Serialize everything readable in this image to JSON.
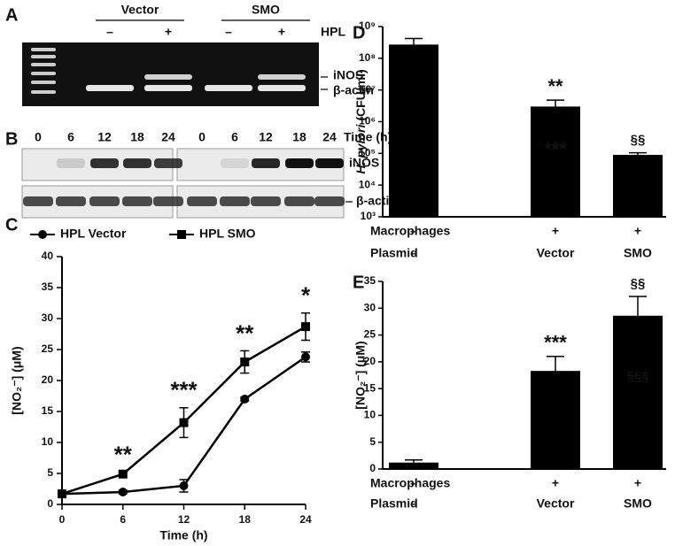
{
  "panels": {
    "A": {
      "label": "A",
      "groups": [
        "Vector",
        "SMO"
      ],
      "treatment": "HPL",
      "signs": [
        "–",
        "+",
        "–",
        "+"
      ],
      "bands": [
        "iNOS",
        "β-actin"
      ]
    },
    "B": {
      "label": "B",
      "times": [
        0,
        6,
        12,
        18,
        24,
        0,
        6,
        12,
        18,
        24
      ],
      "time_label": "Time (h)",
      "bands": [
        "iNOS",
        "β-actin"
      ]
    }
  },
  "chart_data": [
    {
      "panel_label": "C",
      "type": "line",
      "x": [
        0,
        6,
        12,
        18,
        24
      ],
      "xlim": [
        0,
        24
      ],
      "xticks": [
        0,
        6,
        12,
        18,
        24
      ],
      "ylim": [
        0,
        40
      ],
      "yticks": [
        0,
        5,
        10,
        15,
        20,
        25,
        30,
        35,
        40
      ],
      "xlabel": "Time (h)",
      "ylabel": "[NO₂⁻] (μM)",
      "series": [
        {
          "name": "HPL Vector",
          "color": "#000000",
          "marker": "circle",
          "values": [
            1.7,
            2.0,
            3.0,
            17.0,
            23.8
          ],
          "errors": [
            0.3,
            0.3,
            1.0,
            0.3,
            0.8
          ]
        },
        {
          "name": "HPL SMO",
          "color": "#000000",
          "marker": "square",
          "values": [
            1.7,
            4.9,
            13.2,
            23.0,
            28.7
          ],
          "errors": [
            0.3,
            0.3,
            2.4,
            1.8,
            2.2
          ]
        }
      ],
      "annotations": [
        {
          "text": "**",
          "x": 6
        },
        {
          "text": "***",
          "x": 12
        },
        {
          "text": "**",
          "x": 18
        },
        {
          "text": "*",
          "x": 24
        }
      ]
    },
    {
      "panel_label": "D",
      "type": "bar",
      "log_scale": true,
      "color": "#000000",
      "values": [
        270000000,
        3000000,
        90000
      ],
      "errors": [
        150000000,
        1800000,
        15000
      ],
      "ylim": [
        1000,
        1000000000
      ],
      "yticks": [
        {
          "value": 1000,
          "label": "10³"
        },
        {
          "value": 10000,
          "label": "10⁴"
        },
        {
          "value": 100000,
          "label": "10⁵"
        },
        {
          "value": 1000000,
          "label": "10⁶"
        },
        {
          "value": 10000000,
          "label": "10⁷"
        },
        {
          "value": 100000000,
          "label": "10⁸"
        },
        {
          "value": 1000000000,
          "label": "10⁹"
        }
      ],
      "ylabel_species": "H. pylori",
      "ylabel_unit": "(CFU/ml)",
      "rows": [
        {
          "label": "Macrophages",
          "values": [
            "–",
            "+",
            "+"
          ]
        },
        {
          "label": "Plasmid",
          "values": [
            "–",
            "Vector",
            "SMO"
          ]
        }
      ],
      "annotations": [
        {
          "text": "**",
          "index": 1
        },
        {
          "text": "***",
          "index": 1,
          "inside": true,
          "color": "#555555"
        },
        {
          "text": "§§",
          "index": 2
        }
      ]
    },
    {
      "panel_label": "E",
      "type": "bar",
      "log_scale": false,
      "color": "#000000",
      "values": [
        1.2,
        18.3,
        28.6
      ],
      "errors": [
        0.5,
        2.7,
        3.6
      ],
      "ylim": [
        0,
        35
      ],
      "yticks": [
        0,
        5,
        10,
        15,
        20,
        25,
        30,
        35
      ],
      "ylabel": "[NO₂⁻] (μM)",
      "rows": [
        {
          "label": "Macrophages",
          "values": [
            "–",
            "+",
            "+"
          ]
        },
        {
          "label": "Plasmid",
          "values": [
            "–",
            "Vector",
            "SMO"
          ]
        }
      ],
      "annotations": [
        {
          "text": "***",
          "index": 1
        },
        {
          "text": "§§",
          "index": 2
        },
        {
          "text": "§§§",
          "index": 2,
          "inside": true,
          "color": "#555555"
        }
      ]
    }
  ]
}
